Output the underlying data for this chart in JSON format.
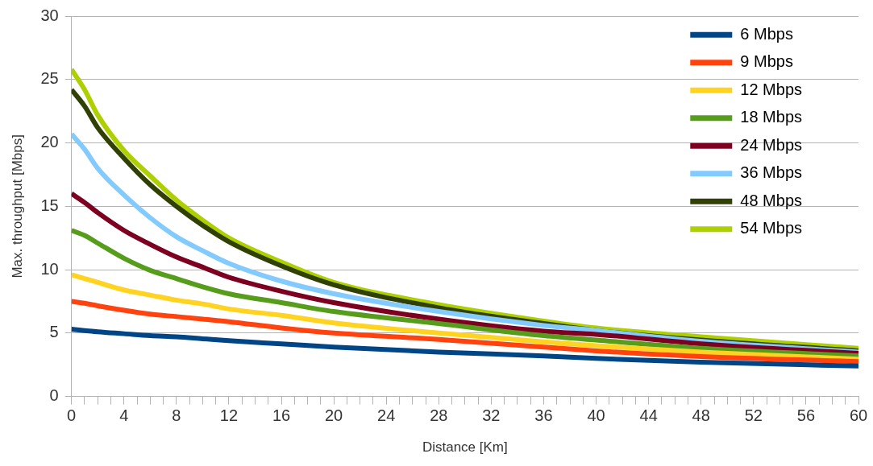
{
  "chart_data": {
    "type": "line",
    "xlabel": "Distance [Km]",
    "ylabel": "Max. throughput [Mbps]",
    "x": [
      0,
      1,
      2,
      4,
      6,
      8,
      10,
      12,
      16,
      20,
      28,
      36,
      40,
      48,
      60
    ],
    "series": [
      {
        "name": "6 Mbps",
        "color": "#004586",
        "values": [
          5.3,
          5.2,
          5.1,
          4.95,
          4.8,
          4.7,
          4.55,
          4.4,
          4.15,
          3.9,
          3.5,
          3.2,
          3.0,
          2.7,
          2.4
        ]
      },
      {
        "name": "9 Mbps",
        "color": "#ff420e",
        "values": [
          7.5,
          7.35,
          7.15,
          6.8,
          6.5,
          6.3,
          6.1,
          5.9,
          5.4,
          5.0,
          4.5,
          3.9,
          3.6,
          3.15,
          2.75
        ]
      },
      {
        "name": "12 Mbps",
        "color": "#ffd320",
        "values": [
          9.6,
          9.3,
          9.0,
          8.4,
          8.0,
          7.6,
          7.3,
          6.9,
          6.4,
          5.8,
          5.0,
          4.3,
          4.0,
          3.5,
          2.95
        ]
      },
      {
        "name": "18 Mbps",
        "color": "#579d1c",
        "values": [
          13.1,
          12.7,
          12.1,
          10.9,
          9.95,
          9.3,
          8.65,
          8.1,
          7.4,
          6.7,
          5.75,
          4.8,
          4.45,
          3.8,
          3.2
        ]
      },
      {
        "name": "24 Mbps",
        "color": "#7e0021",
        "values": [
          16.0,
          15.3,
          14.5,
          13.1,
          12.0,
          11.0,
          10.2,
          9.4,
          8.3,
          7.4,
          6.1,
          5.15,
          4.9,
          4.15,
          3.4
        ]
      },
      {
        "name": "36 Mbps",
        "color": "#83caff",
        "values": [
          20.7,
          19.5,
          18.0,
          15.9,
          14.1,
          12.6,
          11.5,
          10.5,
          9.1,
          8.1,
          6.7,
          5.6,
          5.2,
          4.35,
          3.5
        ]
      },
      {
        "name": "48 Mbps",
        "color": "#314004",
        "values": [
          24.2,
          22.9,
          21.2,
          18.8,
          16.7,
          15.0,
          13.5,
          12.2,
          10.3,
          8.8,
          7.0,
          5.75,
          5.2,
          4.45,
          3.6
        ]
      },
      {
        "name": "54 Mbps",
        "color": "#aecf00",
        "values": [
          25.8,
          24.2,
          22.2,
          19.4,
          17.4,
          15.5,
          13.9,
          12.5,
          10.6,
          9.0,
          7.25,
          5.95,
          5.4,
          4.7,
          3.8
        ]
      }
    ],
    "xlim": [
      0,
      60
    ],
    "xticks": [
      0,
      {
        "value": 1,
        "label": null
      },
      {
        "value": 2,
        "label": null
      },
      {
        "value": 3,
        "label": null
      },
      4,
      {
        "value": 5,
        "label": null
      },
      {
        "value": 6,
        "label": null
      },
      {
        "value": 7,
        "label": null
      },
      8,
      {
        "value": 9,
        "label": null
      },
      {
        "value": 10,
        "label": null
      },
      {
        "value": 11,
        "label": null
      },
      12,
      {
        "value": 13,
        "label": null
      },
      {
        "value": 14,
        "label": null
      },
      {
        "value": 15,
        "label": null
      },
      16,
      {
        "value": 17,
        "label": null
      },
      {
        "value": 18,
        "label": null
      },
      {
        "value": 19,
        "label": null
      },
      20,
      {
        "value": 21,
        "label": null
      },
      {
        "value": 22,
        "label": null
      },
      {
        "value": 23,
        "label": null
      },
      24,
      {
        "value": 25,
        "label": null
      },
      {
        "value": 26,
        "label": null
      },
      {
        "value": 27,
        "label": null
      },
      28,
      {
        "value": 29,
        "label": null
      },
      {
        "value": 30,
        "label": null
      },
      {
        "value": 31,
        "label": null
      },
      32,
      {
        "value": 33,
        "label": null
      },
      {
        "value": 34,
        "label": null
      },
      {
        "value": 35,
        "label": null
      },
      36,
      {
        "value": 37,
        "label": null
      },
      {
        "value": 38,
        "label": null
      },
      {
        "value": 39,
        "label": null
      },
      40,
      {
        "value": 41,
        "label": null
      },
      {
        "value": 42,
        "label": null
      },
      {
        "value": 43,
        "label": null
      },
      44,
      {
        "value": 45,
        "label": null
      },
      {
        "value": 46,
        "label": null
      },
      {
        "value": 47,
        "label": null
      },
      48,
      {
        "value": 49,
        "label": null
      },
      {
        "value": 50,
        "label": null
      },
      {
        "value": 51,
        "label": null
      },
      52,
      {
        "value": 53,
        "label": null
      },
      {
        "value": 54,
        "label": null
      },
      {
        "value": 55,
        "label": null
      },
      56,
      {
        "value": 57,
        "label": null
      },
      {
        "value": 58,
        "label": null
      },
      {
        "value": 59,
        "label": null
      },
      60
    ],
    "ylim": [
      0,
      30
    ],
    "yticks": [
      0,
      5,
      10,
      15,
      20,
      25,
      30
    ],
    "grid": "y",
    "legend": "top right",
    "marker": "none",
    "line_style": "solid"
  }
}
